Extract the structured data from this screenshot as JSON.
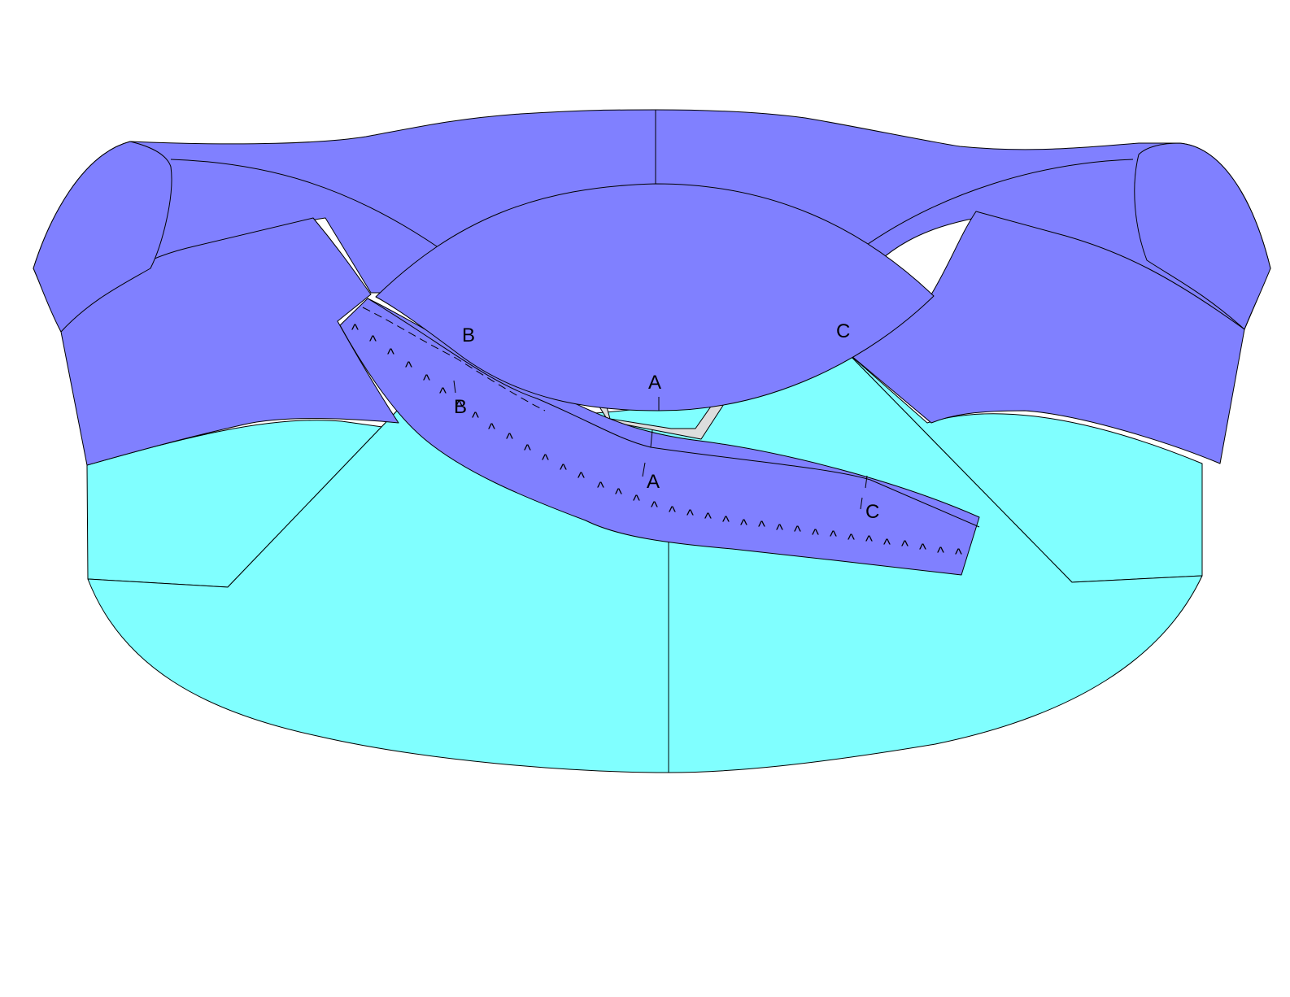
{
  "colors": {
    "blue_panel": "#8080ff",
    "cyan_panel": "#80ffff",
    "grey_facing": "#dddddd",
    "outline": "#000000",
    "background": "#ffffff"
  },
  "labels": {
    "neckline_b": "B",
    "neckline_c": "C",
    "neckline_a": "A",
    "band_b": "B",
    "band_a": "A",
    "band_c": "C"
  },
  "band": {
    "snip_glyph": "^"
  },
  "icons": {
    "notch": "line-notch"
  }
}
